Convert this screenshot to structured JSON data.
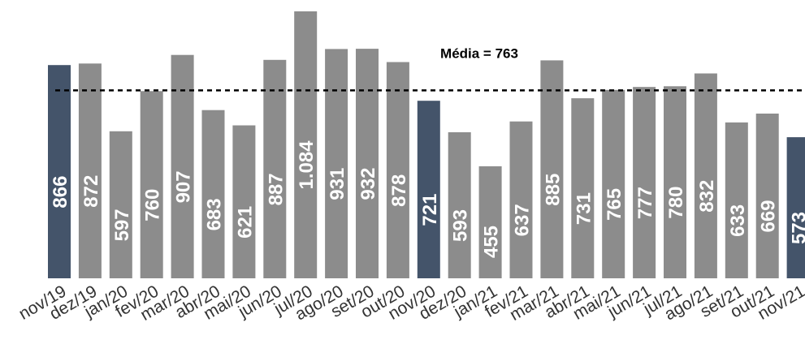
{
  "chart_data": {
    "type": "bar",
    "categories": [
      "nov/19",
      "dez/19",
      "jan/20",
      "fev/20",
      "mar/20",
      "abr/20",
      "mai/20",
      "jun/20",
      "jul/20",
      "ago/20",
      "set/20",
      "out/20",
      "nov/20",
      "dez/20",
      "jan/21",
      "fev/21",
      "mar/21",
      "abr/21",
      "mai/21",
      "jun/21",
      "jul/21",
      "ago/21",
      "set/21",
      "out/21",
      "nov/21"
    ],
    "values": [
      866,
      872,
      597,
      760,
      907,
      683,
      621,
      887,
      1084,
      931,
      932,
      878,
      721,
      593,
      455,
      637,
      885,
      731,
      765,
      777,
      780,
      832,
      633,
      669,
      573
    ],
    "value_labels": [
      "866",
      "872",
      "597",
      "760",
      "907",
      "683",
      "621",
      "887",
      "1.084",
      "931",
      "932",
      "878",
      "721",
      "593",
      "455",
      "637",
      "885",
      "731",
      "765",
      "777",
      "780",
      "832",
      "633",
      "669",
      "573"
    ],
    "highlighted": [
      0,
      12,
      24
    ],
    "average": {
      "value": 763,
      "label": "Média = 763"
    },
    "colors": {
      "bar": "#8c8c8c",
      "highlight": "#44546a",
      "average_line": "#000000",
      "label": "#ffffff"
    },
    "ylim": [
      0,
      1084
    ],
    "grid": false
  }
}
